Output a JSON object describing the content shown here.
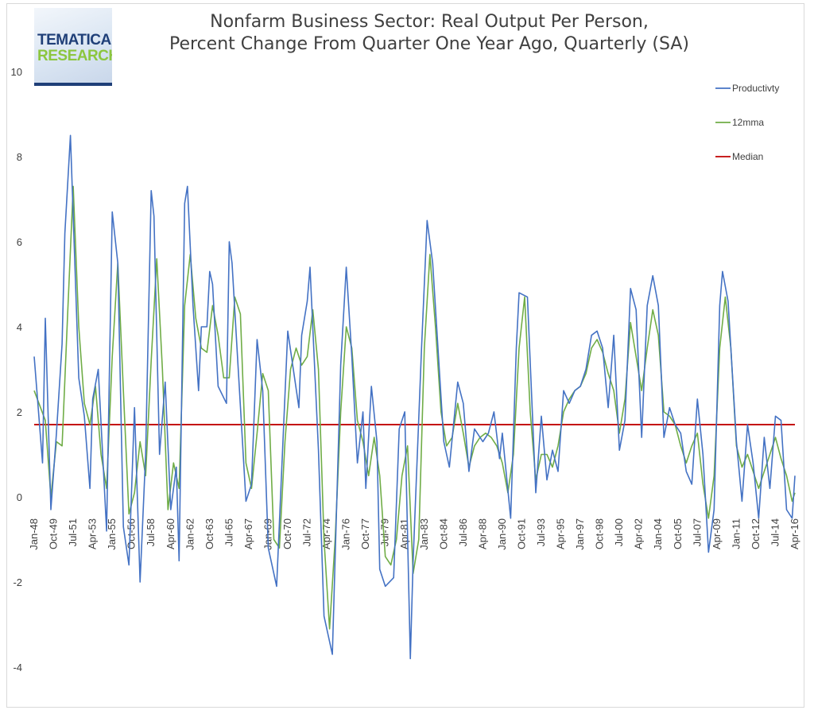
{
  "title": {
    "line1": "Nonfarm Business Sector: Real Output Per Person,",
    "line2": "Percent Change From Quarter One Year Ago, Quarterly (SA)"
  },
  "logo": {
    "line1": "TEMATICA",
    "line2": "RESEARCH"
  },
  "colors": {
    "productivity": "#4472c4",
    "mma": "#70ad47",
    "median": "#c00000",
    "axis": "#404040"
  },
  "chart_data": {
    "type": "line",
    "title": "Nonfarm Business Sector: Real Output Per Person, Percent Change From Quarter One Year Ago, Quarterly (SA)",
    "xlabel": "",
    "ylabel": "",
    "ylim": [
      -4,
      10
    ],
    "yticks": [
      10,
      8,
      6,
      4,
      2,
      0,
      -2,
      -4
    ],
    "grid": false,
    "legend_position": "right",
    "x_range": [
      "Jan-48",
      "Apr-16"
    ],
    "xticks": [
      "Jan-48",
      "Oct-49",
      "Jul-51",
      "Apr-53",
      "Jan-55",
      "Oct-56",
      "Jul-58",
      "Apr-60",
      "Jan-62",
      "Oct-63",
      "Jul-65",
      "Apr-67",
      "Jan-69",
      "Oct-70",
      "Jul-72",
      "Apr-74",
      "Jan-76",
      "Oct-77",
      "Jul-79",
      "Apr-81",
      "Jan-83",
      "Oct-84",
      "Jul-86",
      "Apr-88",
      "Jan-90",
      "Oct-91",
      "Jul-93",
      "Apr-95",
      "Jan-97",
      "Oct-98",
      "Jul-00",
      "Apr-02",
      "Jan-04",
      "Oct-05",
      "Jul-07",
      "Apr-09",
      "Jan-11",
      "Oct-12",
      "Jul-14",
      "Apr-16"
    ],
    "median": 1.7,
    "series": [
      {
        "name": "Productivty",
        "points": [
          [
            "Jan-48",
            3.3
          ],
          [
            "Oct-48",
            0.8
          ],
          [
            "Jan-49",
            4.2
          ],
          [
            "Jul-49",
            -0.3
          ],
          [
            "Jan-50",
            1.5
          ],
          [
            "Jul-50",
            3.6
          ],
          [
            "Oct-50",
            6.2
          ],
          [
            "Apr-51",
            8.5
          ],
          [
            "Jan-52",
            2.8
          ],
          [
            "Jul-52",
            1.9
          ],
          [
            "Jan-53",
            0.2
          ],
          [
            "Apr-53",
            2.3
          ],
          [
            "Oct-53",
            3.0
          ],
          [
            "Jul-54",
            -0.8
          ],
          [
            "Jan-55",
            6.7
          ],
          [
            "Jul-55",
            5.5
          ],
          [
            "Jan-56",
            -0.7
          ],
          [
            "Jul-56",
            -1.6
          ],
          [
            "Jan-57",
            2.1
          ],
          [
            "Jul-57",
            -2.0
          ],
          [
            "Jan-58",
            1.0
          ],
          [
            "Jul-58",
            7.2
          ],
          [
            "Oct-58",
            6.6
          ],
          [
            "Apr-59",
            1.0
          ],
          [
            "Oct-59",
            2.7
          ],
          [
            "Apr-60",
            -0.3
          ],
          [
            "Oct-60",
            0.7
          ],
          [
            "Jan-61",
            -1.5
          ],
          [
            "Jul-61",
            6.9
          ],
          [
            "Oct-61",
            7.3
          ],
          [
            "Apr-62",
            4.5
          ],
          [
            "Oct-62",
            2.5
          ],
          [
            "Jan-63",
            4.0
          ],
          [
            "Jul-63",
            4.0
          ],
          [
            "Oct-63",
            5.3
          ],
          [
            "Jan-64",
            5.0
          ],
          [
            "Jul-64",
            2.6
          ],
          [
            "Apr-65",
            2.2
          ],
          [
            "Jul-65",
            6.0
          ],
          [
            "Oct-65",
            5.5
          ],
          [
            "Jan-67",
            -0.1
          ],
          [
            "Jul-67",
            0.3
          ],
          [
            "Jan-68",
            3.7
          ],
          [
            "Jul-68",
            2.5
          ],
          [
            "Jan-69",
            -1.2
          ],
          [
            "Oct-69",
            -2.1
          ],
          [
            "Oct-70",
            3.9
          ],
          [
            "Apr-71",
            3.0
          ],
          [
            "Oct-71",
            2.1
          ],
          [
            "Jan-72",
            3.8
          ],
          [
            "Jul-72",
            4.6
          ],
          [
            "Oct-72",
            5.4
          ],
          [
            "Jul-73",
            1.1
          ],
          [
            "Jan-74",
            -2.8
          ],
          [
            "Oct-74",
            -3.7
          ],
          [
            "Jul-75",
            3.1
          ],
          [
            "Jan-76",
            5.4
          ],
          [
            "Jul-76",
            3.3
          ],
          [
            "Jan-77",
            0.8
          ],
          [
            "Jul-77",
            2.0
          ],
          [
            "Oct-77",
            0.2
          ],
          [
            "Apr-78",
            2.6
          ],
          [
            "Oct-78",
            1.3
          ],
          [
            "Jan-79",
            -1.7
          ],
          [
            "Jul-79",
            -2.1
          ],
          [
            "Apr-80",
            -1.9
          ],
          [
            "Oct-80",
            1.6
          ],
          [
            "Apr-81",
            2.0
          ],
          [
            "Oct-81",
            -3.8
          ],
          [
            "Jan-82",
            -1.5
          ],
          [
            "Oct-82",
            3.5
          ],
          [
            "Apr-83",
            6.5
          ],
          [
            "Oct-83",
            5.5
          ],
          [
            "Oct-84",
            1.3
          ],
          [
            "Apr-85",
            0.7
          ],
          [
            "Jan-86",
            2.7
          ],
          [
            "Jul-86",
            2.2
          ],
          [
            "Jan-87",
            0.6
          ],
          [
            "Jul-87",
            1.6
          ],
          [
            "Apr-88",
            1.3
          ],
          [
            "Oct-88",
            1.5
          ],
          [
            "Apr-89",
            2.0
          ],
          [
            "Oct-89",
            0.9
          ],
          [
            "Jan-90",
            1.5
          ],
          [
            "Oct-90",
            -0.5
          ],
          [
            "Apr-91",
            3.5
          ],
          [
            "Jul-91",
            4.8
          ],
          [
            "Apr-92",
            4.7
          ],
          [
            "Jan-93",
            0.1
          ],
          [
            "Jul-93",
            1.9
          ],
          [
            "Jan-94",
            0.4
          ],
          [
            "Jul-94",
            1.1
          ],
          [
            "Jan-95",
            0.6
          ],
          [
            "Jul-95",
            2.5
          ],
          [
            "Jan-96",
            2.2
          ],
          [
            "Jul-96",
            2.5
          ],
          [
            "Jan-97",
            2.6
          ],
          [
            "Jul-97",
            3.0
          ],
          [
            "Jan-98",
            3.8
          ],
          [
            "Jul-98",
            3.9
          ],
          [
            "Jan-99",
            3.5
          ],
          [
            "Jul-99",
            2.1
          ],
          [
            "Jan-00",
            3.8
          ],
          [
            "Jul-00",
            1.1
          ],
          [
            "Jan-01",
            1.8
          ],
          [
            "Jul-01",
            4.9
          ],
          [
            "Jan-02",
            4.4
          ],
          [
            "Jul-02",
            1.4
          ],
          [
            "Jan-03",
            4.5
          ],
          [
            "Jul-03",
            5.2
          ],
          [
            "Jan-04",
            4.5
          ],
          [
            "Jul-04",
            1.4
          ],
          [
            "Jan-05",
            2.1
          ],
          [
            "Jul-05",
            1.7
          ],
          [
            "Jan-06",
            1.5
          ],
          [
            "Jul-06",
            0.6
          ],
          [
            "Jan-07",
            0.3
          ],
          [
            "Jul-07",
            2.3
          ],
          [
            "Jan-08",
            1.0
          ],
          [
            "Jul-08",
            -1.3
          ],
          [
            "Jan-09",
            -0.3
          ],
          [
            "Jul-09",
            4.5
          ],
          [
            "Oct-09",
            5.3
          ],
          [
            "Apr-10",
            4.6
          ],
          [
            "Jan-11",
            1.3
          ],
          [
            "Jul-11",
            -0.1
          ],
          [
            "Jan-12",
            1.7
          ],
          [
            "Jul-12",
            0.8
          ],
          [
            "Jan-13",
            -0.5
          ],
          [
            "Jul-13",
            1.4
          ],
          [
            "Jan-14",
            0.2
          ],
          [
            "Jul-14",
            1.9
          ],
          [
            "Jan-15",
            1.8
          ],
          [
            "Jul-15",
            -0.3
          ],
          [
            "Jan-16",
            -0.5
          ],
          [
            "Apr-16",
            0.5
          ]
        ]
      },
      {
        "name": "12mma",
        "points": [
          [
            "Jan-48",
            2.5
          ],
          [
            "Jan-49",
            1.8
          ],
          [
            "Jul-49",
            0.0
          ],
          [
            "Jan-50",
            1.3
          ],
          [
            "Jul-50",
            1.2
          ],
          [
            "Jan-51",
            4.3
          ],
          [
            "Jul-51",
            7.3
          ],
          [
            "Jan-52",
            4.0
          ],
          [
            "Jul-52",
            2.2
          ],
          [
            "Jan-53",
            1.7
          ],
          [
            "Jul-53",
            2.6
          ],
          [
            "Jan-54",
            1.0
          ],
          [
            "Jul-54",
            0.2
          ],
          [
            "Jan-55",
            3.3
          ],
          [
            "Jul-55",
            5.5
          ],
          [
            "Jan-56",
            2.5
          ],
          [
            "Jul-56",
            -0.4
          ],
          [
            "Jan-57",
            0.1
          ],
          [
            "Jul-57",
            1.3
          ],
          [
            "Jan-58",
            0.5
          ],
          [
            "Jul-58",
            3.2
          ],
          [
            "Jan-59",
            5.6
          ],
          [
            "Jul-59",
            3.0
          ],
          [
            "Jan-60",
            -0.3
          ],
          [
            "Jul-60",
            0.8
          ],
          [
            "Jan-61",
            0.2
          ],
          [
            "Jul-61",
            4.5
          ],
          [
            "Jan-62",
            5.7
          ],
          [
            "Jul-62",
            4.2
          ],
          [
            "Jan-63",
            3.5
          ],
          [
            "Jul-63",
            3.4
          ],
          [
            "Jan-64",
            4.5
          ],
          [
            "Jul-64",
            3.8
          ],
          [
            "Jan-65",
            2.8
          ],
          [
            "Jul-65",
            2.8
          ],
          [
            "Jan-66",
            4.7
          ],
          [
            "Jul-66",
            4.3
          ],
          [
            "Jan-67",
            0.8
          ],
          [
            "Jul-67",
            0.2
          ],
          [
            "Jan-68",
            1.5
          ],
          [
            "Jul-68",
            2.9
          ],
          [
            "Jan-69",
            2.5
          ],
          [
            "Jul-69",
            -1.0
          ],
          [
            "Jan-70",
            -1.2
          ],
          [
            "Jul-70",
            1.3
          ],
          [
            "Jan-71",
            3.0
          ],
          [
            "Jul-71",
            3.5
          ],
          [
            "Jan-72",
            3.1
          ],
          [
            "Jul-72",
            3.3
          ],
          [
            "Jan-73",
            4.4
          ],
          [
            "Jul-73",
            3.0
          ],
          [
            "Jan-74",
            -1.0
          ],
          [
            "Jul-74",
            -3.1
          ],
          [
            "Jan-75",
            -1.0
          ],
          [
            "Jul-75",
            2.0
          ],
          [
            "Jan-76",
            4.0
          ],
          [
            "Jul-76",
            3.5
          ],
          [
            "Jan-77",
            1.8
          ],
          [
            "Jul-77",
            1.3
          ],
          [
            "Jan-78",
            0.5
          ],
          [
            "Jul-78",
            1.4
          ],
          [
            "Jan-79",
            0.5
          ],
          [
            "Jul-79",
            -1.4
          ],
          [
            "Jan-80",
            -1.6
          ],
          [
            "Jul-80",
            -1.0
          ],
          [
            "Jan-81",
            0.5
          ],
          [
            "Jul-81",
            1.2
          ],
          [
            "Jan-82",
            -1.8
          ],
          [
            "Jul-82",
            -1.0
          ],
          [
            "Jan-83",
            3.5
          ],
          [
            "Jul-83",
            5.7
          ],
          [
            "Jan-84",
            4.0
          ],
          [
            "Jul-84",
            2.0
          ],
          [
            "Jan-85",
            1.2
          ],
          [
            "Jul-85",
            1.4
          ],
          [
            "Jan-86",
            2.2
          ],
          [
            "Jul-86",
            1.5
          ],
          [
            "Jan-87",
            0.7
          ],
          [
            "Jul-87",
            1.2
          ],
          [
            "Jan-88",
            1.4
          ],
          [
            "Jul-88",
            1.5
          ],
          [
            "Jan-89",
            1.4
          ],
          [
            "Jul-89",
            1.2
          ],
          [
            "Jan-90",
            0.8
          ],
          [
            "Jul-90",
            0.1
          ],
          [
            "Jan-91",
            1.0
          ],
          [
            "Jul-91",
            3.5
          ],
          [
            "Jan-92",
            4.7
          ],
          [
            "Jul-92",
            2.0
          ],
          [
            "Jan-93",
            0.4
          ],
          [
            "Jul-93",
            1.0
          ],
          [
            "Jan-94",
            1.0
          ],
          [
            "Jul-94",
            0.7
          ],
          [
            "Jan-95",
            1.2
          ],
          [
            "Jul-95",
            2.0
          ],
          [
            "Jan-96",
            2.3
          ],
          [
            "Jul-96",
            2.5
          ],
          [
            "Jan-97",
            2.6
          ],
          [
            "Jul-97",
            2.9
          ],
          [
            "Jan-98",
            3.5
          ],
          [
            "Jul-98",
            3.7
          ],
          [
            "Jan-99",
            3.4
          ],
          [
            "Jul-99",
            2.9
          ],
          [
            "Jan-00",
            2.5
          ],
          [
            "Jul-00",
            1.5
          ],
          [
            "Jan-01",
            2.3
          ],
          [
            "Jul-01",
            4.1
          ],
          [
            "Jan-02",
            3.3
          ],
          [
            "Jul-02",
            2.5
          ],
          [
            "Jan-03",
            3.5
          ],
          [
            "Jul-03",
            4.4
          ],
          [
            "Jan-04",
            3.8
          ],
          [
            "Jul-04",
            2.0
          ],
          [
            "Jan-05",
            1.9
          ],
          [
            "Jul-05",
            1.7
          ],
          [
            "Jan-06",
            1.2
          ],
          [
            "Jul-06",
            0.8
          ],
          [
            "Jan-07",
            1.2
          ],
          [
            "Jul-07",
            1.5
          ],
          [
            "Jan-08",
            0.3
          ],
          [
            "Jul-08",
            -0.5
          ],
          [
            "Jan-09",
            0.5
          ],
          [
            "Jul-09",
            3.5
          ],
          [
            "Jan-10",
            4.7
          ],
          [
            "Jul-10",
            3.5
          ],
          [
            "Jan-11",
            1.2
          ],
          [
            "Jul-11",
            0.7
          ],
          [
            "Jan-12",
            1.0
          ],
          [
            "Jul-12",
            0.6
          ],
          [
            "Jan-13",
            0.2
          ],
          [
            "Jul-13",
            0.6
          ],
          [
            "Jan-14",
            1.0
          ],
          [
            "Jul-14",
            1.4
          ],
          [
            "Jan-15",
            0.9
          ],
          [
            "Jul-15",
            0.5
          ],
          [
            "Jan-16",
            -0.1
          ],
          [
            "Apr-16",
            0.1
          ]
        ]
      },
      {
        "name": "Median",
        "constant": 1.7
      }
    ]
  }
}
